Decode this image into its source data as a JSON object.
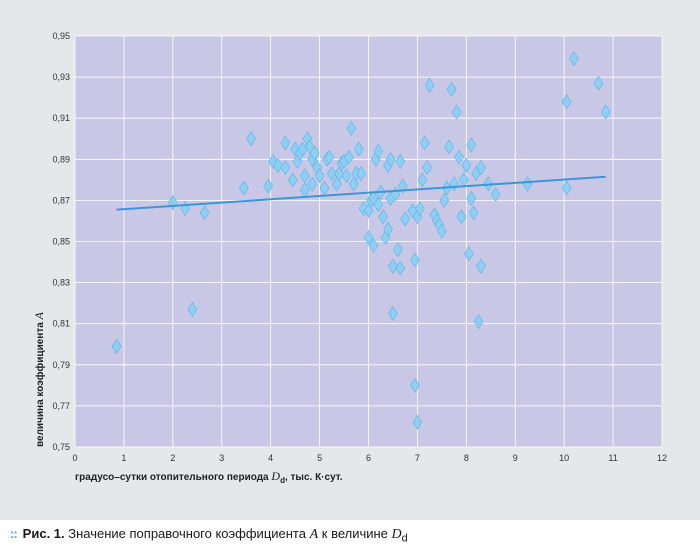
{
  "chart_data": {
    "type": "scatter",
    "xlabel": "градусо–сутки отопительного периода D_d, тыс. К·сут.",
    "xlabel_parts": {
      "pre": "градусо–сутки отопительного периода ",
      "sym": "D",
      "sub": "d",
      "post": ", тыс. К·сут."
    },
    "ylabel": "величина коэффициента A",
    "ylabel_parts": {
      "pre": "величина коэффициента ",
      "sym": "A"
    },
    "xlim": [
      0,
      12
    ],
    "ylim": [
      0.75,
      0.95
    ],
    "x_ticks": [
      "0",
      "1",
      "2",
      "3",
      "4",
      "5",
      "6",
      "7",
      "8",
      "9",
      "10",
      "11",
      "12"
    ],
    "y_ticks": [
      "0,75",
      "0,77",
      "0,79",
      "0,81",
      "0,83",
      "0,85",
      "0,87",
      "0,89",
      "0,91",
      "0,93",
      "0,95"
    ],
    "grid": true,
    "marker": "diamond",
    "colors": {
      "plot_bg": "#c8c8e6",
      "grid": "#ffffff",
      "points": "#8dcff2",
      "points_edge": "#5bb3e6",
      "trend": "#3a97d8"
    },
    "trend_line": {
      "x": [
        0.85,
        10.85
      ],
      "y": [
        0.8655,
        0.8815
      ]
    },
    "points": [
      [
        0.85,
        0.799
      ],
      [
        2.0,
        0.869
      ],
      [
        2.25,
        0.866
      ],
      [
        2.4,
        0.817
      ],
      [
        2.65,
        0.864
      ],
      [
        3.45,
        0.876
      ],
      [
        3.6,
        0.9
      ],
      [
        3.95,
        0.877
      ],
      [
        4.05,
        0.889
      ],
      [
        4.15,
        0.887
      ],
      [
        4.3,
        0.886
      ],
      [
        4.3,
        0.898
      ],
      [
        4.45,
        0.88
      ],
      [
        4.5,
        0.895
      ],
      [
        4.55,
        0.889
      ],
      [
        4.6,
        0.893
      ],
      [
        4.65,
        0.895
      ],
      [
        4.7,
        0.882
      ],
      [
        4.7,
        0.875
      ],
      [
        4.75,
        0.9
      ],
      [
        4.8,
        0.896
      ],
      [
        4.85,
        0.89
      ],
      [
        4.85,
        0.878
      ],
      [
        4.9,
        0.893
      ],
      [
        4.95,
        0.886
      ],
      [
        5.0,
        0.882
      ],
      [
        5.1,
        0.876
      ],
      [
        5.15,
        0.89
      ],
      [
        5.2,
        0.891
      ],
      [
        5.25,
        0.883
      ],
      [
        5.35,
        0.878
      ],
      [
        5.4,
        0.883
      ],
      [
        5.45,
        0.888
      ],
      [
        5.5,
        0.889
      ],
      [
        5.55,
        0.882
      ],
      [
        5.6,
        0.891
      ],
      [
        5.65,
        0.905
      ],
      [
        5.7,
        0.878
      ],
      [
        5.75,
        0.883
      ],
      [
        5.8,
        0.895
      ],
      [
        5.85,
        0.883
      ],
      [
        5.9,
        0.866
      ],
      [
        6.0,
        0.852
      ],
      [
        6.0,
        0.865
      ],
      [
        6.05,
        0.87
      ],
      [
        6.1,
        0.848
      ],
      [
        6.1,
        0.871
      ],
      [
        6.15,
        0.89
      ],
      [
        6.2,
        0.894
      ],
      [
        6.2,
        0.868
      ],
      [
        6.25,
        0.874
      ],
      [
        6.3,
        0.862
      ],
      [
        6.35,
        0.852
      ],
      [
        6.4,
        0.856
      ],
      [
        6.4,
        0.887
      ],
      [
        6.45,
        0.89
      ],
      [
        6.45,
        0.871
      ],
      [
        6.5,
        0.838
      ],
      [
        6.5,
        0.815
      ],
      [
        6.55,
        0.873
      ],
      [
        6.6,
        0.846
      ],
      [
        6.65,
        0.889
      ],
      [
        6.65,
        0.837
      ],
      [
        6.7,
        0.877
      ],
      [
        6.75,
        0.861
      ],
      [
        6.9,
        0.865
      ],
      [
        6.95,
        0.78
      ],
      [
        6.95,
        0.841
      ],
      [
        7.0,
        0.762
      ],
      [
        7.0,
        0.862
      ],
      [
        7.05,
        0.866
      ],
      [
        7.1,
        0.88
      ],
      [
        7.15,
        0.898
      ],
      [
        7.2,
        0.886
      ],
      [
        7.25,
        0.926
      ],
      [
        7.35,
        0.863
      ],
      [
        7.4,
        0.86
      ],
      [
        7.45,
        0.858
      ],
      [
        7.5,
        0.855
      ],
      [
        7.55,
        0.87
      ],
      [
        7.6,
        0.876
      ],
      [
        7.65,
        0.896
      ],
      [
        7.7,
        0.924
      ],
      [
        7.75,
        0.878
      ],
      [
        7.8,
        0.913
      ],
      [
        7.85,
        0.891
      ],
      [
        7.9,
        0.862
      ],
      [
        7.95,
        0.88
      ],
      [
        8.0,
        0.887
      ],
      [
        8.05,
        0.844
      ],
      [
        8.1,
        0.897
      ],
      [
        8.1,
        0.871
      ],
      [
        8.15,
        0.864
      ],
      [
        8.2,
        0.883
      ],
      [
        8.25,
        0.811
      ],
      [
        8.3,
        0.838
      ],
      [
        8.3,
        0.886
      ],
      [
        8.45,
        0.878
      ],
      [
        8.6,
        0.873
      ],
      [
        9.25,
        0.878
      ],
      [
        10.05,
        0.876
      ],
      [
        10.05,
        0.918
      ],
      [
        10.2,
        0.939
      ],
      [
        10.7,
        0.927
      ],
      [
        10.85,
        0.913
      ]
    ]
  },
  "caption": {
    "dots": "::",
    "fig": "Рис. 1.",
    "text": " Значение поправочного коэффициента ",
    "sym_a": "A",
    "middle": " к величине ",
    "sym_d": "D",
    "sub_d": "d"
  }
}
